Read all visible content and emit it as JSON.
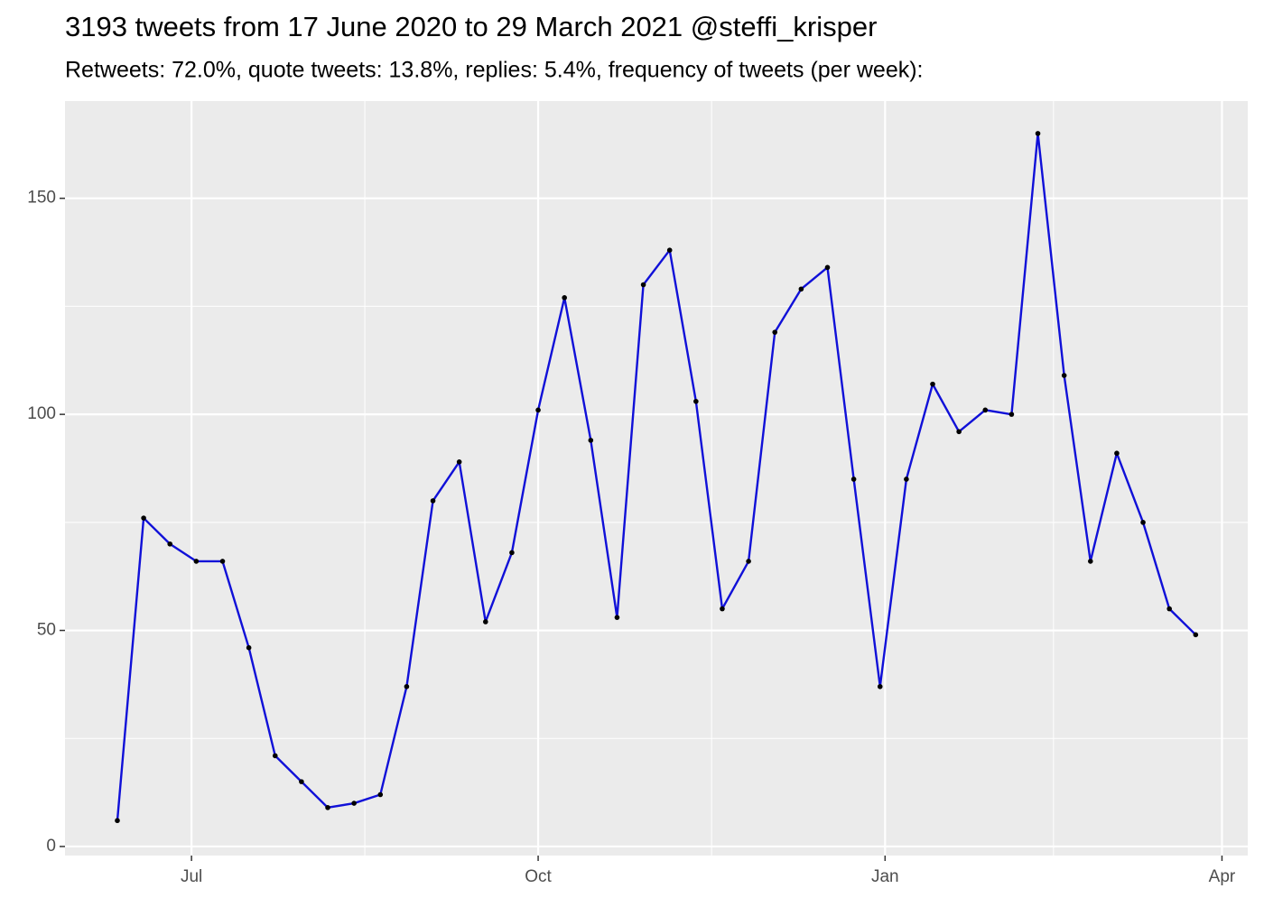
{
  "chart_data": {
    "type": "line",
    "title": "3193 tweets from 17 June 2020 to 29 March 2021 @steffi_krisper",
    "subtitle": "Retweets: 72.0%, quote tweets: 13.8%, replies: 5.4%, frequency of tweets (per week):",
    "categories": [
      null,
      null,
      null,
      null,
      null,
      null,
      null,
      null,
      null,
      null,
      null,
      null,
      null,
      null,
      null,
      null,
      null,
      null,
      null,
      null,
      null,
      null,
      null,
      null,
      null,
      null,
      null,
      null,
      null,
      null,
      null,
      null,
      null,
      null,
      null,
      null,
      null,
      null,
      null,
      null,
      null,
      null
    ],
    "series": [
      {
        "color": "#1010d8",
        "values": [
          6,
          76,
          70,
          66,
          66,
          46,
          21,
          15,
          9,
          10,
          12,
          37,
          80,
          89,
          52,
          68,
          101,
          127,
          94,
          53,
          130,
          138,
          103,
          55,
          66,
          119,
          129,
          134,
          85,
          37,
          85,
          107,
          96,
          101,
          100,
          165,
          109,
          66,
          91,
          75,
          55,
          49
        ]
      }
    ],
    "xlim": [
      -1.99,
      42.98
    ],
    "xticks": [
      {
        "value": 2.82,
        "label": "Jul"
      },
      {
        "value": 16,
        "label": "Oct"
      },
      {
        "value": 29.19,
        "label": "Jan"
      },
      {
        "value": 42.0,
        "label": "Apr"
      }
    ],
    "ylim": [
      -2.1,
      172.5
    ],
    "yticks": [
      0,
      50,
      100,
      150
    ],
    "grid": true
  }
}
